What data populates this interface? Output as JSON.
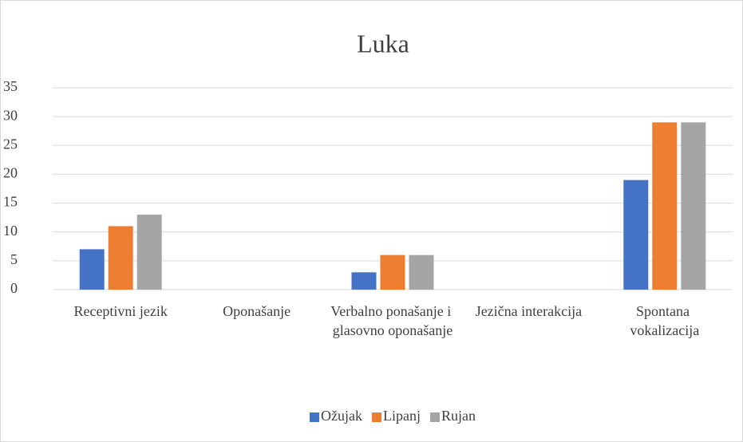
{
  "chart_data": {
    "type": "bar",
    "title": "Luka",
    "categories": [
      "Receptivni jezik",
      "Oponašanje",
      "Verbalno ponašanje i glasovno oponašanje",
      "Jezična interakcija",
      "Spontana vokalizacija"
    ],
    "series": [
      {
        "name": "Ožujak",
        "color": "#4472c4",
        "values": [
          7,
          0,
          3,
          0,
          19
        ]
      },
      {
        "name": "Lipanj",
        "color": "#ed7d31",
        "values": [
          11,
          0,
          6,
          0,
          29
        ]
      },
      {
        "name": "Rujan",
        "color": "#a5a5a5",
        "values": [
          13,
          0,
          6,
          0,
          29
        ]
      }
    ],
    "ylim": [
      0,
      35
    ],
    "yticks": [
      0,
      5,
      10,
      15,
      20,
      25,
      30,
      35
    ],
    "grid": true,
    "legend": "bottom"
  }
}
